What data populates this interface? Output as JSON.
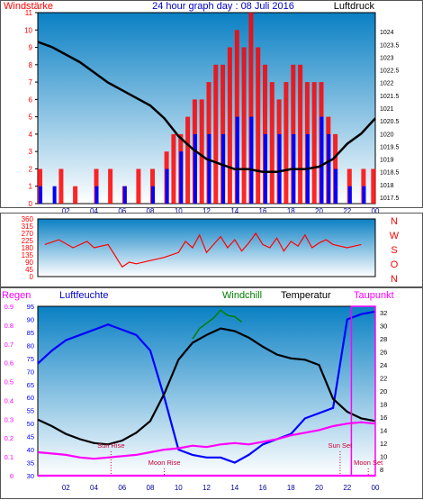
{
  "header": {
    "windstaerke_label": "Windstärke",
    "title": "24 hour graph day : 08 Juli 2016",
    "luftdruck_label": "Luftdruck"
  },
  "compass_labels": [
    "N",
    "W",
    "S",
    "O",
    "N"
  ],
  "bottom_header": {
    "regen_label": "Regen",
    "luftfeuchte_label": "Luftfeuchte",
    "windchill_label": "Windchill",
    "temperatur_label": "Temperatur",
    "taupunkt_label": "Taupunkt"
  },
  "colors": {
    "wind_gust": "#ff0000",
    "wind_avg": "#0000ff",
    "pressure": "#000000",
    "direction": "#ff0000",
    "humidity": "#0000ff",
    "temperature": "#000000",
    "windchill": "#008000",
    "dewpoint": "#ff00ff",
    "panel_top": "#0a80c4",
    "panel_bottom": "#ffffff",
    "time_tick_labels": "#000099",
    "regen_axis": "#ff00ff",
    "humidity_axis": "#0000ff"
  },
  "chart_data": [
    {
      "type": "bar",
      "title": "24 hour graph day : 08 Juli 2016",
      "xlabel": "",
      "ylabel_left": "Windstärke",
      "ylabel_right": "Luftdruck",
      "x_tick_labels": [
        "02",
        "04",
        "06",
        "08",
        "10",
        "12",
        "14",
        "16",
        "18",
        "20",
        "22",
        "00"
      ],
      "xlim": [
        0,
        24
      ],
      "ylim_left": [
        0,
        11
      ],
      "y_ticks_left": [
        0,
        1,
        2,
        3,
        4,
        5,
        6,
        7,
        8,
        9,
        10,
        11
      ],
      "ylim_right": [
        1017.25,
        1024.75
      ],
      "y_ticks_right": [
        1017.5,
        1018,
        1018.5,
        1019,
        1019.5,
        1020,
        1020.5,
        1021,
        1021.5,
        1022,
        1022.5,
        1023,
        1023.5,
        1024
      ],
      "y_tick_labels_right": [
        "1017.5",
        "1018",
        "1018.5",
        "1019",
        "1019.5",
        "1020",
        "1020.5",
        "1021",
        "1021.5",
        "1022",
        "1022.5",
        "1023",
        "1023.5",
        "1024"
      ],
      "series": [
        {
          "name": "Windstärke",
          "x": [
            0.0,
            1.5,
            2.5,
            4.0,
            5.0,
            6.0,
            7.0,
            8.0,
            9.0,
            9.5,
            10.0,
            10.5,
            11.0,
            11.5,
            12.0,
            12.5,
            13.0,
            13.5,
            14.0,
            14.5,
            15.0,
            15.5,
            16.0,
            16.5,
            17.0,
            17.5,
            18.0,
            18.5,
            19.0,
            19.5,
            20.0,
            20.5,
            21.0,
            22.0,
            23.0,
            23.7
          ],
          "y": [
            2,
            2,
            1,
            2,
            2,
            1,
            2,
            2,
            3,
            4,
            4,
            5,
            6,
            6,
            7,
            8,
            8,
            9,
            10,
            9,
            11,
            9,
            8,
            7,
            6,
            7,
            8,
            8,
            7,
            7,
            7,
            5,
            4,
            2,
            2,
            2
          ]
        },
        {
          "name": "Wind avg",
          "x": [
            0.0,
            1.0,
            2.0,
            4.0,
            6.0,
            8.0,
            9.0,
            10.0,
            11.0,
            12.0,
            13.0,
            14.0,
            15.0,
            16.0,
            17.0,
            18.0,
            19.0,
            20.0,
            20.5,
            21.0,
            22.0,
            23.0
          ],
          "y": [
            1,
            1,
            0,
            1,
            1,
            1,
            2,
            3,
            4,
            4,
            4,
            5,
            5,
            4,
            4,
            4,
            4,
            5,
            4,
            2,
            1,
            1
          ]
        },
        {
          "name": "Luftdruck",
          "x": [
            0,
            1,
            2,
            3,
            4,
            5,
            6,
            7,
            8,
            9,
            10,
            11,
            12,
            13,
            14,
            15,
            16,
            17,
            18,
            19,
            20,
            21,
            22,
            23,
            24
          ],
          "y": [
            1023.6,
            1023.4,
            1023.1,
            1022.8,
            1022.4,
            1022.0,
            1021.7,
            1021.4,
            1021.1,
            1020.6,
            1019.9,
            1019.4,
            1019.0,
            1018.8,
            1018.6,
            1018.6,
            1018.5,
            1018.5,
            1018.6,
            1018.6,
            1018.7,
            1019.0,
            1019.6,
            1020.0,
            1020.6
          ]
        }
      ]
    },
    {
      "type": "scatter",
      "title": "",
      "ylim": [
        0,
        360
      ],
      "y_ticks": [
        0,
        45,
        90,
        135,
        180,
        225,
        270,
        315,
        360
      ],
      "y_tick_labels": [
        "0",
        "45",
        "90",
        "135",
        "180",
        "225",
        "270",
        "315",
        "360"
      ],
      "x_tick_labels": [
        "02",
        "04",
        "06",
        "08",
        "10",
        "12",
        "14",
        "16",
        "18",
        "20",
        "22",
        "00"
      ],
      "series": [
        {
          "name": "Windrichtung",
          "x": [
            0.5,
            1.5,
            2.5,
            3.5,
            4.0,
            5.0,
            6.0,
            6.5,
            7.0,
            8.0,
            9.0,
            10.0,
            10.5,
            11.0,
            11.5,
            12.0,
            12.5,
            13.0,
            13.5,
            14.0,
            14.5,
            15.0,
            15.5,
            16.0,
            16.5,
            17.0,
            17.5,
            18.0,
            18.5,
            19.0,
            19.5,
            20.0,
            20.5,
            21.0,
            22.0,
            23.0
          ],
          "y": [
            200,
            230,
            180,
            220,
            180,
            200,
            60,
            90,
            80,
            100,
            120,
            150,
            220,
            180,
            260,
            150,
            200,
            250,
            180,
            230,
            160,
            210,
            270,
            200,
            180,
            240,
            160,
            220,
            190,
            260,
            180,
            210,
            230,
            200,
            180,
            200
          ]
        }
      ]
    },
    {
      "type": "line",
      "title": "",
      "x_tick_labels": [
        "02",
        "04",
        "06",
        "08",
        "10",
        "12",
        "14",
        "16",
        "18",
        "20",
        "22",
        "00"
      ],
      "ylim_regen": [
        0,
        0.9
      ],
      "regen_ticks": [
        0,
        0.1,
        0.2,
        0.3,
        0.4,
        0.5,
        0.6,
        0.7,
        0.8,
        0.9
      ],
      "regen_tick_labels": [
        "0",
        "0.1",
        "0.2",
        "0.3",
        "0.4",
        "0.5",
        "0.6",
        "0.7",
        "0.8",
        "0.9"
      ],
      "ylim_humidity": [
        30,
        95
      ],
      "humidity_ticks": [
        30,
        35,
        40,
        45,
        50,
        55,
        60,
        65,
        70,
        75,
        80,
        85,
        90,
        95
      ],
      "humidity_tick_labels": [
        "30",
        "35",
        "40",
        "45",
        "50",
        "55",
        "60",
        "65",
        "70",
        "75",
        "80",
        "85",
        "90",
        "95"
      ],
      "ylim_temperature": [
        7,
        33
      ],
      "temperature_ticks": [
        8,
        10,
        12,
        14,
        16,
        18,
        20,
        22,
        24,
        26,
        28,
        30,
        32
      ],
      "temperature_tick_labels": [
        "8",
        "10",
        "12",
        "14",
        "16",
        "18",
        "20",
        "22",
        "24",
        "26",
        "28",
        "30",
        "32"
      ],
      "annotations": [
        {
          "label": "Sun Rise",
          "x": 5.2
        },
        {
          "label": "Moon Rise",
          "x": 9.0
        },
        {
          "label": "Sun Set",
          "x": 21.5
        },
        {
          "label": "Moon Set",
          "x": 23.5
        }
      ],
      "series": [
        {
          "name": "Luftfeuchte",
          "x": [
            0,
            1,
            2,
            3,
            4,
            5,
            6,
            7,
            8,
            9,
            10,
            11,
            12,
            13,
            14,
            15,
            16,
            17,
            18,
            19,
            20,
            21,
            22,
            23,
            24
          ],
          "y": [
            73,
            78,
            82,
            84,
            86,
            88,
            86,
            84,
            78,
            60,
            40,
            38,
            37,
            37,
            35,
            38,
            42,
            44,
            46,
            52,
            54,
            56,
            90,
            92,
            93
          ]
        },
        {
          "name": "Temperatur",
          "x": [
            0,
            1,
            2,
            3,
            4,
            5,
            6,
            7,
            8,
            9,
            10,
            11,
            12,
            13,
            14,
            15,
            16,
            17,
            18,
            19,
            20,
            21,
            22,
            23,
            24
          ],
          "y": [
            15.6,
            14.6,
            13.4,
            12.6,
            12.0,
            11.8,
            12.4,
            13.6,
            15.4,
            19.6,
            24.8,
            27.4,
            28.6,
            29.6,
            29.2,
            28.2,
            26.8,
            25.6,
            25.0,
            24.8,
            24.0,
            18.8,
            16.8,
            15.8,
            15.4
          ]
        },
        {
          "name": "Windchill",
          "x": [
            11.0,
            11.5,
            12.0,
            12.5,
            13.0,
            13.5,
            14.0,
            14.5
          ],
          "y": [
            28.0,
            29.6,
            30.4,
            31.2,
            32.4,
            31.6,
            31.4,
            30.6
          ]
        },
        {
          "name": "Taupunkt",
          "x": [
            0,
            1,
            2,
            3,
            4,
            5,
            6,
            7,
            8,
            9,
            10,
            11,
            12,
            13,
            14,
            15,
            16,
            17,
            18,
            19,
            20,
            21,
            22,
            23,
            24
          ],
          "y": [
            10.6,
            10.4,
            10.2,
            9.8,
            9.6,
            9.8,
            10.0,
            10.2,
            10.6,
            11.0,
            11.2,
            11.6,
            11.4,
            11.8,
            12.0,
            11.8,
            12.2,
            12.6,
            13.2,
            13.6,
            14.0,
            14.6,
            15.0,
            15.2,
            15.0
          ]
        },
        {
          "name": "Regen",
          "x": [
            0,
            24
          ],
          "y": [
            0,
            0
          ]
        }
      ]
    }
  ]
}
